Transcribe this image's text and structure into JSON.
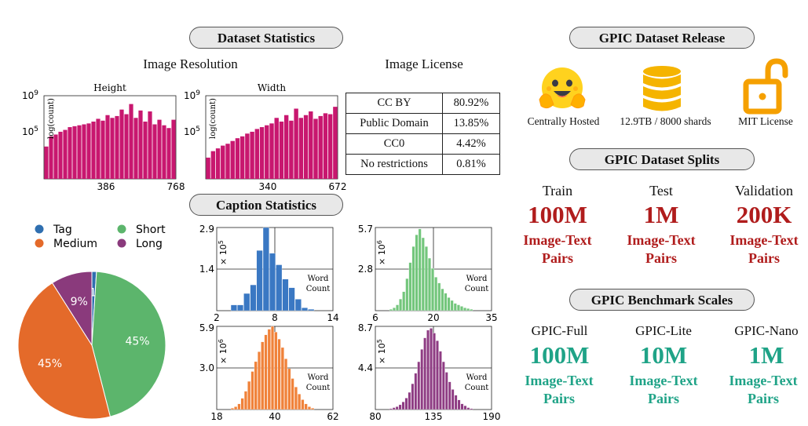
{
  "sections": {
    "dataset_statistics": "Dataset Statistics",
    "caption_statistics": "Caption Statistics",
    "release": "GPIC Dataset Release",
    "splits": "GPIC Dataset Splits",
    "benchmark": "GPIC Benchmark Scales"
  },
  "subtitles": {
    "image_resolution": "Image Resolution",
    "image_license": "Image License"
  },
  "license_table": [
    {
      "name": "CC BY",
      "value": "80.92%"
    },
    {
      "name": "Public Domain",
      "value": "13.85%"
    },
    {
      "name": "CC0",
      "value": "4.42%"
    },
    {
      "name": "No restrictions",
      "value": "0.81%"
    }
  ],
  "release": [
    {
      "label": "Centrally Hosted",
      "icon": "hugging-face-icon"
    },
    {
      "label": "12.9TB / 8000 shards",
      "icon": "database-icon"
    },
    {
      "label": "MIT License",
      "icon": "unlock-icon"
    }
  ],
  "splits": [
    {
      "name": "Train",
      "count": "100M",
      "unit1": "Image-Text",
      "unit2": "Pairs"
    },
    {
      "name": "Test",
      "count": "1M",
      "unit1": "Image-Text",
      "unit2": "Pairs"
    },
    {
      "name": "Validation",
      "count": "200K",
      "unit1": "Image-Text",
      "unit2": "Pairs"
    }
  ],
  "benchmark": [
    {
      "name": "GPIC-Full",
      "count": "100M",
      "unit1": "Image-Text",
      "unit2": "Pairs"
    },
    {
      "name": "GPIC-Lite",
      "count": "10M",
      "unit1": "Image-Text",
      "unit2": "Pairs"
    },
    {
      "name": "GPIC-Nano",
      "count": "1M",
      "unit1": "Image-Text",
      "unit2": "Pairs"
    }
  ],
  "colors": {
    "red": "#b01c1c",
    "teal": "#1fa387",
    "magenta": "#c8176f"
  },
  "chart_data": [
    {
      "id": "height",
      "type": "bar",
      "title": "Height",
      "xlabel": "",
      "ylabel": "log(count)",
      "yticks": [
        "10^9",
        "10^5"
      ],
      "xticks": [
        "386",
        "768"
      ],
      "ylim": [
        0,
        9
      ],
      "color": "#c8176f",
      "values": [
        3.5,
        4.6,
        4.8,
        5.1,
        5.3,
        5.6,
        5.7,
        5.8,
        5.9,
        6.0,
        6.2,
        6.5,
        6.3,
        6.9,
        6.6,
        6.8,
        7.5,
        7.0,
        8.1,
        6.6,
        7.4,
        6.2,
        7.3,
        5.9,
        6.4,
        5.8,
        5.5,
        6.4
      ]
    },
    {
      "id": "width",
      "type": "bar",
      "title": "Width",
      "xlabel": "",
      "ylabel": "log(count)",
      "yticks": [
        "10^9",
        "10^5"
      ],
      "xticks": [
        "340",
        "672"
      ],
      "ylim": [
        0,
        9
      ],
      "color": "#c8176f",
      "values": [
        2.3,
        3.0,
        3.3,
        3.6,
        3.8,
        4.1,
        4.4,
        4.6,
        4.9,
        5.1,
        5.4,
        5.6,
        5.8,
        6.0,
        6.6,
        6.2,
        6.9,
        6.3,
        7.6,
        6.6,
        6.9,
        7.3,
        6.5,
        6.8,
        7.1,
        7.0,
        7.8
      ]
    },
    {
      "id": "caption-mix",
      "type": "pie",
      "labels": [
        "Tag",
        "Medium",
        "Short",
        "Long"
      ],
      "values": [
        1,
        45,
        45,
        9
      ],
      "slice_labels": [
        "1%",
        "45%",
        "45%",
        "9%"
      ],
      "colors": [
        "#2f6fb0",
        "#e46a2a",
        "#5cb56c",
        "#8a3a7c"
      ],
      "legend": "top"
    },
    {
      "id": "tag-words",
      "type": "bar",
      "color": "#3a78c3",
      "label": "Word Count",
      "ylim": [
        0,
        2.9
      ],
      "yticks": [
        "2.9",
        "1.4"
      ],
      "xticks": [
        "2",
        "8",
        "14"
      ],
      "x_range": [
        2,
        14
      ],
      "y_unit": "× 10^5",
      "values": [
        0.2,
        0.2,
        0.6,
        0.9,
        2.1,
        2.9,
        2.0,
        1.6,
        1.1,
        0.8,
        0.4,
        0.1,
        0.05
      ]
    },
    {
      "id": "short-words",
      "type": "bar",
      "color": "#73c67c",
      "label": "Word Count",
      "ylim": [
        0,
        5.7
      ],
      "yticks": [
        "5.7",
        "2.8"
      ],
      "xticks": [
        "6",
        "20",
        "35"
      ],
      "x_range": [
        6,
        35
      ],
      "y_unit": "× 10^6",
      "values": [
        0.1,
        0.2,
        0.4,
        0.8,
        1.3,
        2.2,
        3.3,
        4.4,
        5.2,
        5.6,
        5.0,
        4.4,
        3.6,
        2.9,
        2.3,
        1.9,
        1.5,
        1.2,
        0.9,
        0.7,
        0.5,
        0.4,
        0.3,
        0.2,
        0.15,
        0.1
      ]
    },
    {
      "id": "medium-words",
      "type": "bar",
      "color": "#f0823a",
      "label": "Word Count",
      "ylim": [
        0,
        5.9
      ],
      "yticks": [
        "5.9",
        "3.0"
      ],
      "xticks": [
        "18",
        "40",
        "62"
      ],
      "x_range": [
        18,
        62
      ],
      "y_unit": "× 10^6",
      "values": [
        0.1,
        0.2,
        0.4,
        0.8,
        1.3,
        2.0,
        2.7,
        3.4,
        4.1,
        4.8,
        5.3,
        5.7,
        5.9,
        5.5,
        5.0,
        4.4,
        3.6,
        2.9,
        2.2,
        1.6,
        1.1,
        0.7,
        0.4,
        0.2,
        0.1
      ]
    },
    {
      "id": "long-words",
      "type": "bar",
      "color": "#8e3c83",
      "label": "Word Count",
      "ylim": [
        0,
        8.7
      ],
      "yticks": [
        "8.7",
        "4.4"
      ],
      "xticks": [
        "80",
        "135",
        "190"
      ],
      "x_range": [
        80,
        190
      ],
      "y_unit": "× 10^5",
      "values": [
        0.1,
        0.2,
        0.3,
        0.5,
        0.8,
        1.2,
        1.8,
        2.7,
        3.8,
        5.0,
        6.3,
        7.5,
        8.3,
        8.5,
        8.0,
        7.2,
        6.1,
        5.0,
        3.9,
        2.9,
        2.1,
        1.5,
        1.0,
        0.6,
        0.4,
        0.2,
        0.1
      ]
    }
  ]
}
